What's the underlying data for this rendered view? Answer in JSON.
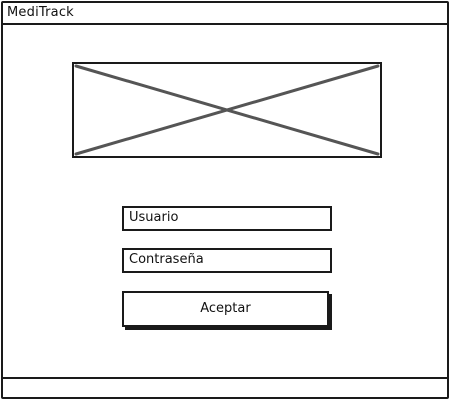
{
  "window": {
    "title": "MediTrack"
  },
  "login": {
    "logo_icon": "image-placeholder-icon",
    "username_field": {
      "value": "Usuario"
    },
    "password_field": {
      "value": "Contraseña"
    },
    "submit_label": "Aceptar"
  },
  "colors": {
    "stroke": "#1a1a1a",
    "background": "#ffffff",
    "placeholder_cross": "#555555"
  }
}
